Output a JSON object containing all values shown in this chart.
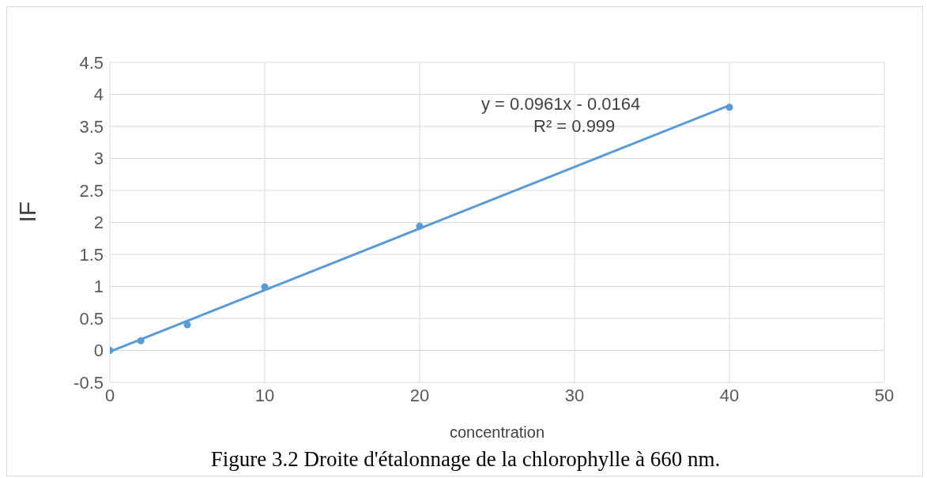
{
  "chart_data": {
    "type": "scatter",
    "xlabel": "concentration",
    "ylabel": "IF",
    "x": [
      0,
      2,
      5,
      10,
      20,
      40
    ],
    "series": [
      {
        "color": "#5b9bd5",
        "values": [
          0,
          0.15,
          0.4,
          0.99,
          1.94,
          3.8
        ],
        "marker": "circle"
      },
      {
        "type": "line",
        "color": "#5b9bd5",
        "x": [
          0,
          40
        ],
        "values": [
          -0.02,
          3.83
        ],
        "line_style": "solid"
      }
    ],
    "xlim": [
      0,
      50
    ],
    "ylim": [
      -0.5,
      4.5
    ],
    "xticks": [
      0,
      10,
      20,
      30,
      40,
      50
    ],
    "yticks": [
      -0.5,
      0,
      0.5,
      1,
      1.5,
      2,
      2.5,
      3,
      3.5,
      4,
      4.5
    ],
    "grid": true,
    "annotations": [
      "y = 0.0961x - 0.0164",
      "R² = 0.999",
      "Figure 3.2 Droite d'étalonnage de la chlorophylle à 660 nm."
    ]
  }
}
